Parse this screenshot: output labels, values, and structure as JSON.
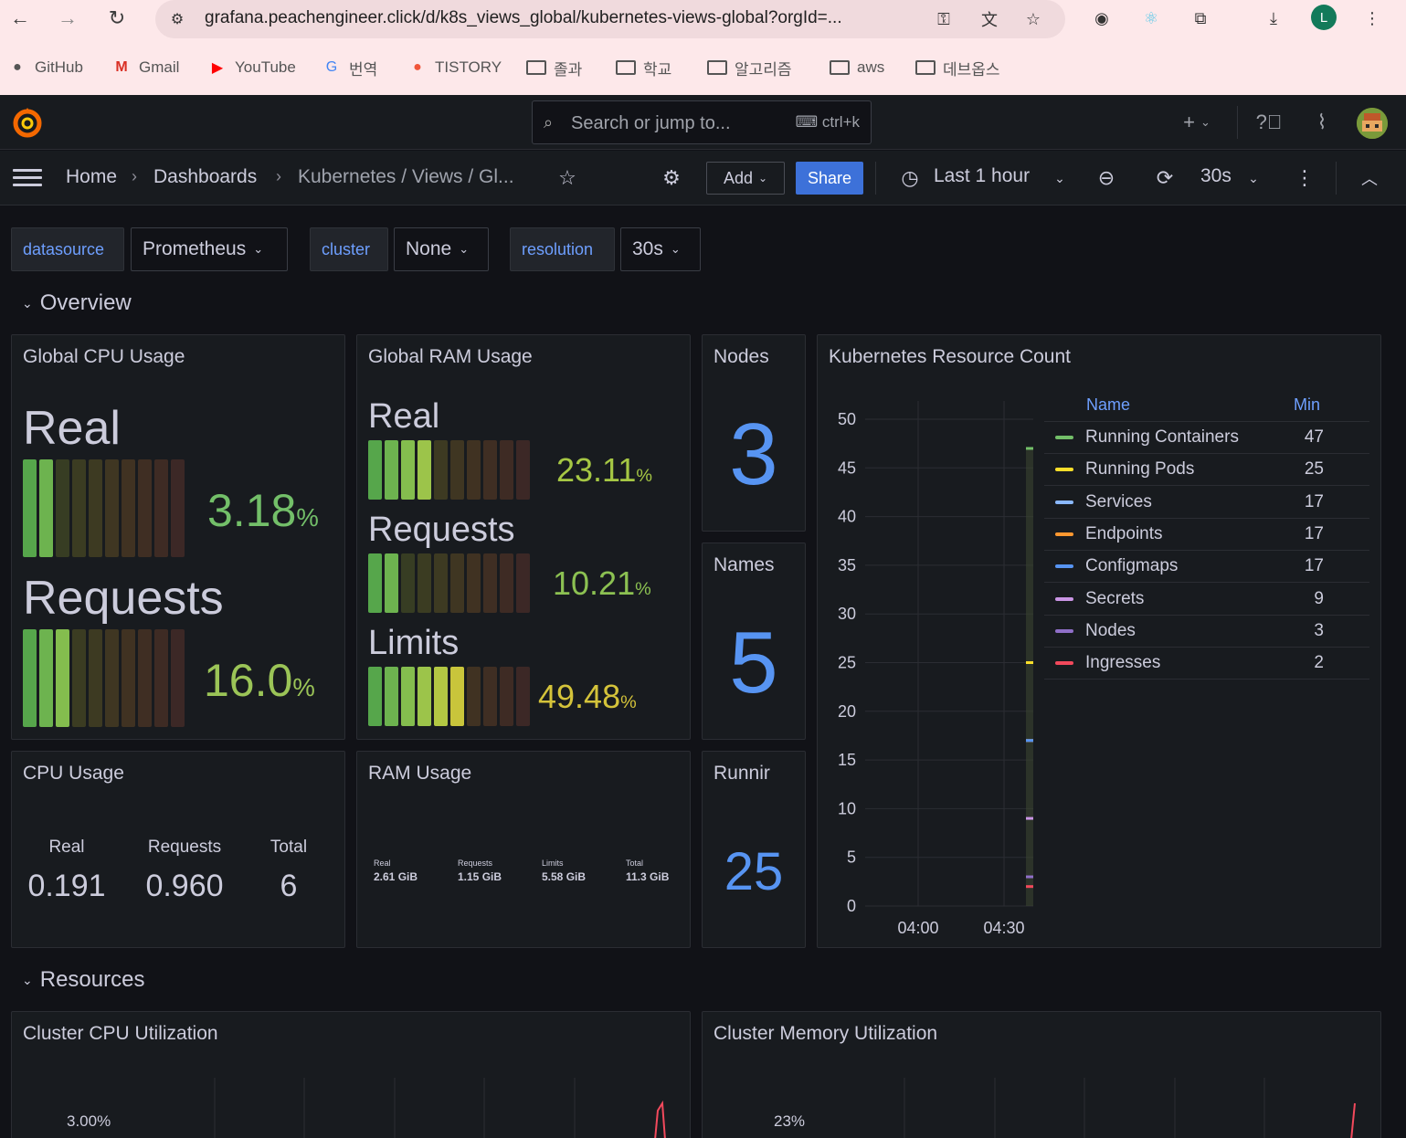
{
  "browser": {
    "url": "grafana.peachengineer.click/d/k8s_views_global/kubernetes-views-global?orgId=...",
    "bookmarks": [
      "GitHub",
      "Gmail",
      "YouTube",
      "번역",
      "TISTORY",
      "졸과",
      "학교",
      "알고리즘",
      "aws",
      "데브옵스"
    ],
    "profile_initial": "L"
  },
  "grafana": {
    "search_placeholder": "Search or jump to...",
    "search_shortcut": "ctrl+k",
    "breadcrumb": [
      "Home",
      "Dashboards",
      "Kubernetes / Views / Gl..."
    ],
    "add_label": "Add",
    "share_label": "Share",
    "time_range": "Last 1 hour",
    "refresh_interval": "30s"
  },
  "variables": [
    {
      "label": "datasource",
      "value": "Prometheus"
    },
    {
      "label": "cluster",
      "value": "None"
    },
    {
      "label": "resolution",
      "value": "30s"
    }
  ],
  "rows": {
    "overview": "Overview",
    "resources": "Resources"
  },
  "panels": {
    "global_cpu": {
      "title": "Global CPU Usage",
      "gauges": [
        {
          "label": "Real",
          "value": "3.18",
          "unit": "%",
          "fraction": 0.0318
        },
        {
          "label": "Requests",
          "value": "16.0",
          "unit": "%",
          "fraction": 0.16
        }
      ]
    },
    "global_ram": {
      "title": "Global RAM Usage",
      "gauges": [
        {
          "label": "Real",
          "value": "23.11",
          "unit": "%",
          "fraction": 0.2311
        },
        {
          "label": "Requests",
          "value": "10.21",
          "unit": "%",
          "fraction": 0.1021
        },
        {
          "label": "Limits",
          "value": "49.48",
          "unit": "%",
          "fraction": 0.4948
        }
      ]
    },
    "nodes": {
      "title": "Nodes",
      "value": "3"
    },
    "namespaces": {
      "title": "Names",
      "value": "5"
    },
    "running": {
      "title": "Runnir",
      "value": "25"
    },
    "cpu_usage": {
      "title": "CPU Usage",
      "items": [
        {
          "label": "Real",
          "value": "0.191"
        },
        {
          "label": "Requests",
          "value": "0.960"
        },
        {
          "label": "Total",
          "value": "6"
        }
      ]
    },
    "ram_usage": {
      "title": "RAM Usage",
      "items": [
        {
          "label": "Real",
          "value": "2.61 GiB"
        },
        {
          "label": "Requests",
          "value": "1.15 GiB"
        },
        {
          "label": "Limits",
          "value": "5.58 GiB"
        },
        {
          "label": "Total",
          "value": "11.3 GiB"
        }
      ]
    },
    "resource_count": {
      "title": "Kubernetes Resource Count",
      "legend_header_name": "Name",
      "legend_header_min": "Min",
      "y_ticks": [
        "50",
        "45",
        "40",
        "35",
        "30",
        "25",
        "20",
        "15",
        "10",
        "5",
        "0"
      ],
      "x_ticks": [
        "04:00",
        "04:30"
      ],
      "series": [
        {
          "name": "Running Containers",
          "min": "47",
          "value": 47,
          "color": "#73bf69"
        },
        {
          "name": "Running Pods",
          "min": "25",
          "value": 25,
          "color": "#fade2a"
        },
        {
          "name": "Services",
          "min": "17",
          "value": 17,
          "color": "#8ab8ff"
        },
        {
          "name": "Endpoints",
          "min": "17",
          "value": 17,
          "color": "#ff9830"
        },
        {
          "name": "Configmaps",
          "min": "17",
          "value": 17,
          "color": "#5794f2"
        },
        {
          "name": "Secrets",
          "min": "9",
          "value": 9,
          "color": "#ca95e5"
        },
        {
          "name": "Nodes",
          "min": "3",
          "value": 3,
          "color": "#8f6fc8"
        },
        {
          "name": "Ingresses",
          "min": "2",
          "value": 2,
          "color": "#f2495c"
        }
      ]
    },
    "cluster_cpu": {
      "title": "Cluster CPU Utilization",
      "y_tick": "3.00%"
    },
    "cluster_mem": {
      "title": "Cluster Memory Utilization",
      "y_tick": "23%"
    }
  },
  "colors": {
    "accent": "#3d71d9",
    "stat_blue": "#5794f2",
    "link_blue": "#6e9fff"
  }
}
